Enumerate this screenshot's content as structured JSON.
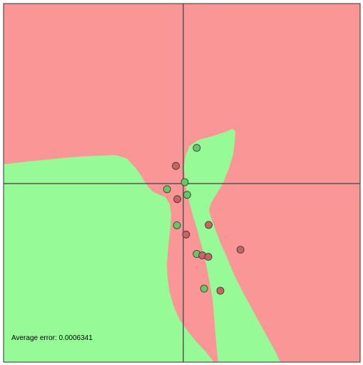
{
  "status": {
    "average_error_text": "Average error: 0.0006341"
  },
  "colors": {
    "negative_region": "#fa9696",
    "positive_region": "#96fa96",
    "negative_point": "#c86464",
    "positive_point": "#64c864",
    "axis": "#555555",
    "point_stroke": "#333333",
    "border": "#333333"
  },
  "points": [
    {
      "x": 0.38,
      "y": 1.01,
      "label": "positive"
    },
    {
      "x": -0.21,
      "y": 0.5,
      "label": "negative"
    },
    {
      "x": 0.04,
      "y": 0.04,
      "label": "positive"
    },
    {
      "x": -0.46,
      "y": -0.16,
      "label": "positive"
    },
    {
      "x": 0.11,
      "y": -0.32,
      "label": "positive"
    },
    {
      "x": -0.17,
      "y": -0.44,
      "label": "negative"
    },
    {
      "x": -0.18,
      "y": -1.18,
      "label": "positive"
    },
    {
      "x": 0.08,
      "y": -1.44,
      "label": "negative"
    },
    {
      "x": 0.72,
      "y": -1.17,
      "label": "negative"
    },
    {
      "x": 0.38,
      "y": -1.99,
      "label": "positive"
    },
    {
      "x": 0.54,
      "y": -2.03,
      "label": "negative"
    },
    {
      "x": 0.71,
      "y": -2.07,
      "label": "negative"
    },
    {
      "x": 1.62,
      "y": -1.87,
      "label": "negative"
    },
    {
      "x": 0.59,
      "y": -2.97,
      "label": "positive"
    },
    {
      "x": 1.05,
      "y": -3.03,
      "label": "negative"
    }
  ]
}
